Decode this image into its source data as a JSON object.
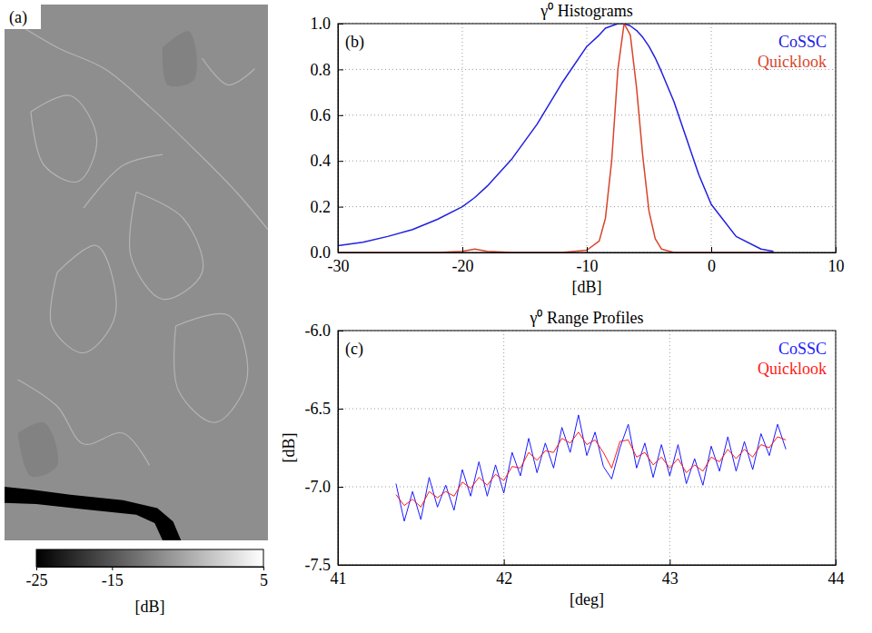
{
  "chart_data": [
    {
      "type": "image",
      "panel": "(a)",
      "colorbar": {
        "range": [
          -25,
          5
        ],
        "ticks": [
          -25,
          -15,
          5
        ],
        "label": "[dB]"
      }
    },
    {
      "type": "line",
      "panel": "(b)",
      "title": "γ⁰ Histograms",
      "x_label": "[dB]",
      "x": [
        -30,
        -28,
        -26,
        -24,
        -22,
        -20,
        -19,
        -18,
        -16,
        -14,
        -12,
        -10,
        -9,
        -8.5,
        -8,
        -7.5,
        -7,
        -6.5,
        -6,
        -5.5,
        -5,
        -4.5,
        -4,
        -3,
        -2,
        -1,
        0,
        2,
        4,
        5
      ],
      "series": [
        {
          "name": "CoSSC",
          "color": "#2020e0",
          "values": [
            0.03,
            0.045,
            0.07,
            0.1,
            0.145,
            0.2,
            0.24,
            0.29,
            0.41,
            0.56,
            0.74,
            0.9,
            0.95,
            0.98,
            0.99,
            1,
            1,
            0.99,
            0.97,
            0.94,
            0.9,
            0.85,
            0.79,
            0.66,
            0.5,
            0.34,
            0.21,
            0.07,
            0.015,
            0.005
          ]
        },
        {
          "name": "Quicklook",
          "color": "#d8452b",
          "values": [
            0,
            0,
            0,
            0,
            0,
            0.005,
            0.015,
            0.005,
            0,
            0,
            0,
            0.01,
            0.05,
            0.15,
            0.4,
            0.8,
            1,
            0.95,
            0.72,
            0.42,
            0.18,
            0.06,
            0.015,
            0,
            0,
            0,
            0,
            0,
            0,
            0
          ]
        }
      ],
      "xlim": [
        -30,
        10
      ],
      "xticks": [
        -30,
        -20,
        -10,
        0,
        10
      ],
      "ylim": [
        0,
        1
      ],
      "yticks": [
        {
          "value": 0,
          "label": "0.0"
        },
        0.2,
        0.4,
        0.6,
        0.8,
        {
          "value": 1,
          "label": "1.0"
        }
      ],
      "grid": true,
      "legend": "upper right"
    },
    {
      "type": "line",
      "panel": "(c)",
      "title": "γ⁰ Range Profiles",
      "x_label": "[deg]",
      "y_label": "[dB]",
      "x": [
        41.35,
        41.4,
        41.45,
        41.5,
        41.55,
        41.6,
        41.65,
        41.7,
        41.75,
        41.8,
        41.85,
        41.9,
        41.95,
        42,
        42.05,
        42.1,
        42.15,
        42.2,
        42.25,
        42.3,
        42.35,
        42.4,
        42.45,
        42.5,
        42.55,
        42.6,
        42.65,
        42.7,
        42.75,
        42.8,
        42.85,
        42.9,
        42.95,
        43,
        43.05,
        43.1,
        43.15,
        43.2,
        43.25,
        43.3,
        43.35,
        43.4,
        43.45,
        43.5,
        43.55,
        43.6,
        43.65,
        43.7
      ],
      "series": [
        {
          "name": "CoSSC",
          "color": "#1a1aff",
          "values": [
            -6.98,
            -7.22,
            -7.03,
            -7.21,
            -6.94,
            -7.13,
            -6.99,
            -7.15,
            -6.89,
            -7.06,
            -6.84,
            -7.06,
            -6.86,
            -7.04,
            -6.78,
            -6.93,
            -6.69,
            -6.91,
            -6.72,
            -6.88,
            -6.62,
            -6.78,
            -6.54,
            -6.8,
            -6.65,
            -6.87,
            -6.95,
            -6.75,
            -6.6,
            -6.88,
            -6.72,
            -6.94,
            -6.73,
            -6.93,
            -6.73,
            -6.98,
            -6.82,
            -6.99,
            -6.74,
            -6.9,
            -6.68,
            -6.9,
            -6.71,
            -6.89,
            -6.66,
            -6.8,
            -6.6,
            -6.76
          ]
        },
        {
          "name": "Quicklook",
          "color": "#ff1a1a",
          "values": [
            -7.05,
            -7.12,
            -7.08,
            -7.13,
            -7.03,
            -7.07,
            -7.03,
            -7.06,
            -6.97,
            -7.01,
            -6.94,
            -6.99,
            -6.92,
            -6.96,
            -6.87,
            -6.88,
            -6.78,
            -6.83,
            -6.77,
            -6.78,
            -6.69,
            -6.72,
            -6.65,
            -6.73,
            -6.7,
            -6.78,
            -6.88,
            -6.71,
            -6.7,
            -6.81,
            -6.78,
            -6.86,
            -6.81,
            -6.88,
            -6.82,
            -6.91,
            -6.86,
            -6.9,
            -6.81,
            -6.84,
            -6.76,
            -6.82,
            -6.76,
            -6.81,
            -6.73,
            -6.75,
            -6.68,
            -6.7
          ]
        }
      ],
      "xlim": [
        41,
        44
      ],
      "xticks": [
        41,
        42,
        43,
        44
      ],
      "ylim": [
        -7.5,
        -6
      ],
      "yticks": [
        -7.5,
        {
          "value": -7,
          "label": "-7.0"
        },
        -6.5,
        {
          "value": -6,
          "label": "-6.0"
        }
      ],
      "grid": true,
      "legend": "upper right"
    }
  ]
}
